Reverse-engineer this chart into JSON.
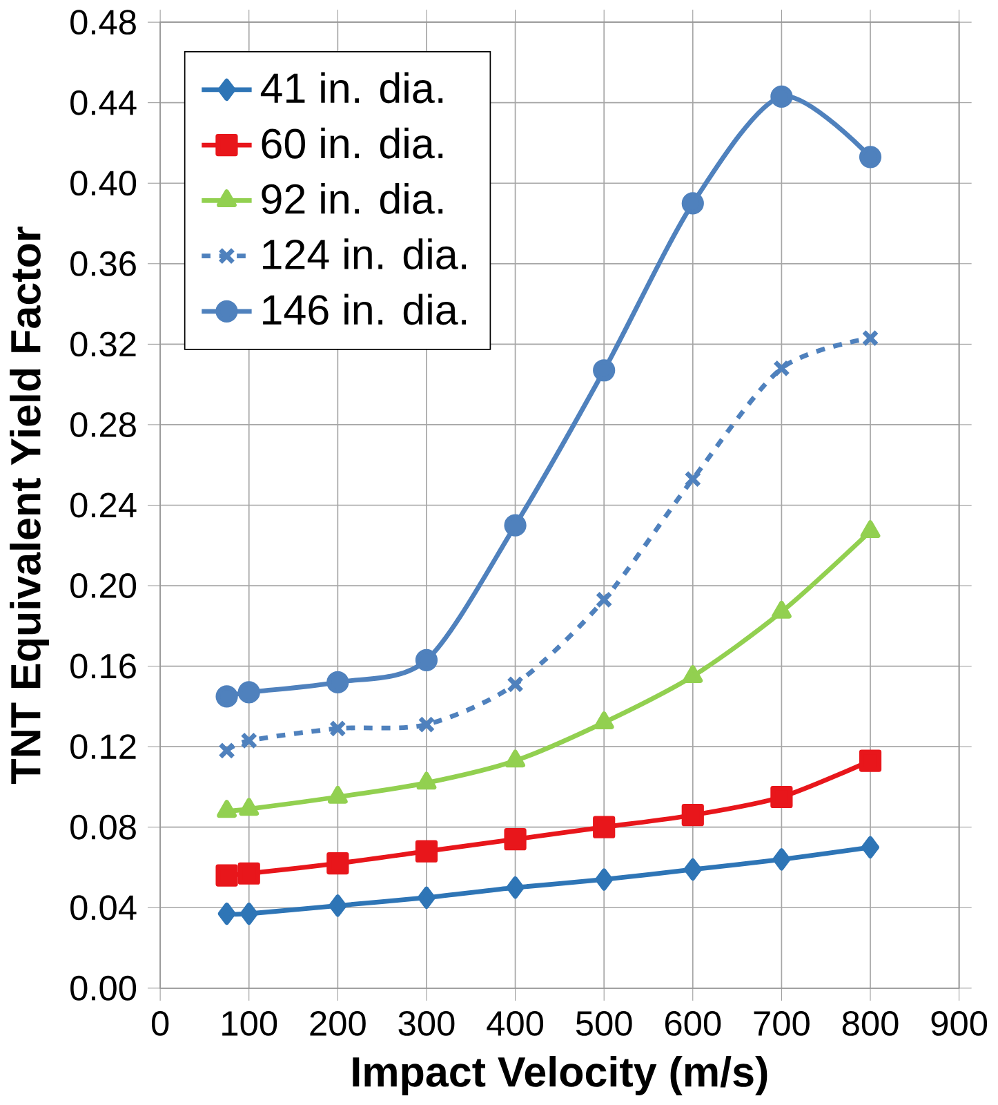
{
  "chart_data": {
    "type": "line",
    "xlabel": "Impact Velocity (m/s)",
    "ylabel": "TNT Equivalent Yield Factor",
    "x": [
      75,
      100,
      200,
      300,
      400,
      500,
      600,
      700,
      800
    ],
    "series": [
      {
        "name": "41 in. dia.",
        "color": "#2e75b6",
        "marker": "diamond",
        "line_style": "solid",
        "values": [
          0.037,
          0.037,
          0.041,
          0.045,
          0.05,
          0.054,
          0.059,
          0.064,
          0.07
        ]
      },
      {
        "name": "60 in. dia.",
        "color": "#e8161b",
        "marker": "square",
        "line_style": "solid",
        "values": [
          0.056,
          0.057,
          0.062,
          0.068,
          0.074,
          0.08,
          0.086,
          0.095,
          0.113
        ]
      },
      {
        "name": "92 in. dia.",
        "color": "#92d050",
        "marker": "triangle",
        "line_style": "solid",
        "values": [
          0.088,
          0.089,
          0.095,
          0.102,
          0.113,
          0.132,
          0.155,
          0.187,
          0.227
        ]
      },
      {
        "name": "124 in. dia.",
        "color": "#4f81bd",
        "marker": "cross",
        "line_style": "dashed",
        "values": [
          0.118,
          0.123,
          0.129,
          0.131,
          0.151,
          0.193,
          0.253,
          0.308,
          0.323
        ]
      },
      {
        "name": "146 in. dia.",
        "color": "#4f81bd",
        "marker": "circle",
        "line_style": "solid",
        "values": [
          0.145,
          0.147,
          0.152,
          0.163,
          0.23,
          0.307,
          0.39,
          0.443,
          0.413
        ]
      }
    ],
    "xlim": [
      0,
      900
    ],
    "xticks": [
      0,
      100,
      200,
      300,
      400,
      500,
      600,
      700,
      800,
      900
    ],
    "ylim": [
      0,
      0.48
    ],
    "yticks": [
      {
        "value": 0,
        "label": "0.00"
      },
      {
        "value": 0.04,
        "label": "0.04"
      },
      {
        "value": 0.08,
        "label": "0.08"
      },
      {
        "value": 0.12,
        "label": "0.12"
      },
      {
        "value": 0.16,
        "label": "0.16"
      },
      {
        "value": 0.2,
        "label": "0.20"
      },
      {
        "value": 0.24,
        "label": "0.24"
      },
      {
        "value": 0.28,
        "label": "0.28"
      },
      {
        "value": 0.32,
        "label": "0.32"
      },
      {
        "value": 0.36,
        "label": "0.36"
      },
      {
        "value": 0.4,
        "label": "0.40"
      },
      {
        "value": 0.44,
        "label": "0.44"
      },
      {
        "value": 0.48,
        "label": "0.48"
      }
    ],
    "grid": true,
    "legend": "top left"
  }
}
